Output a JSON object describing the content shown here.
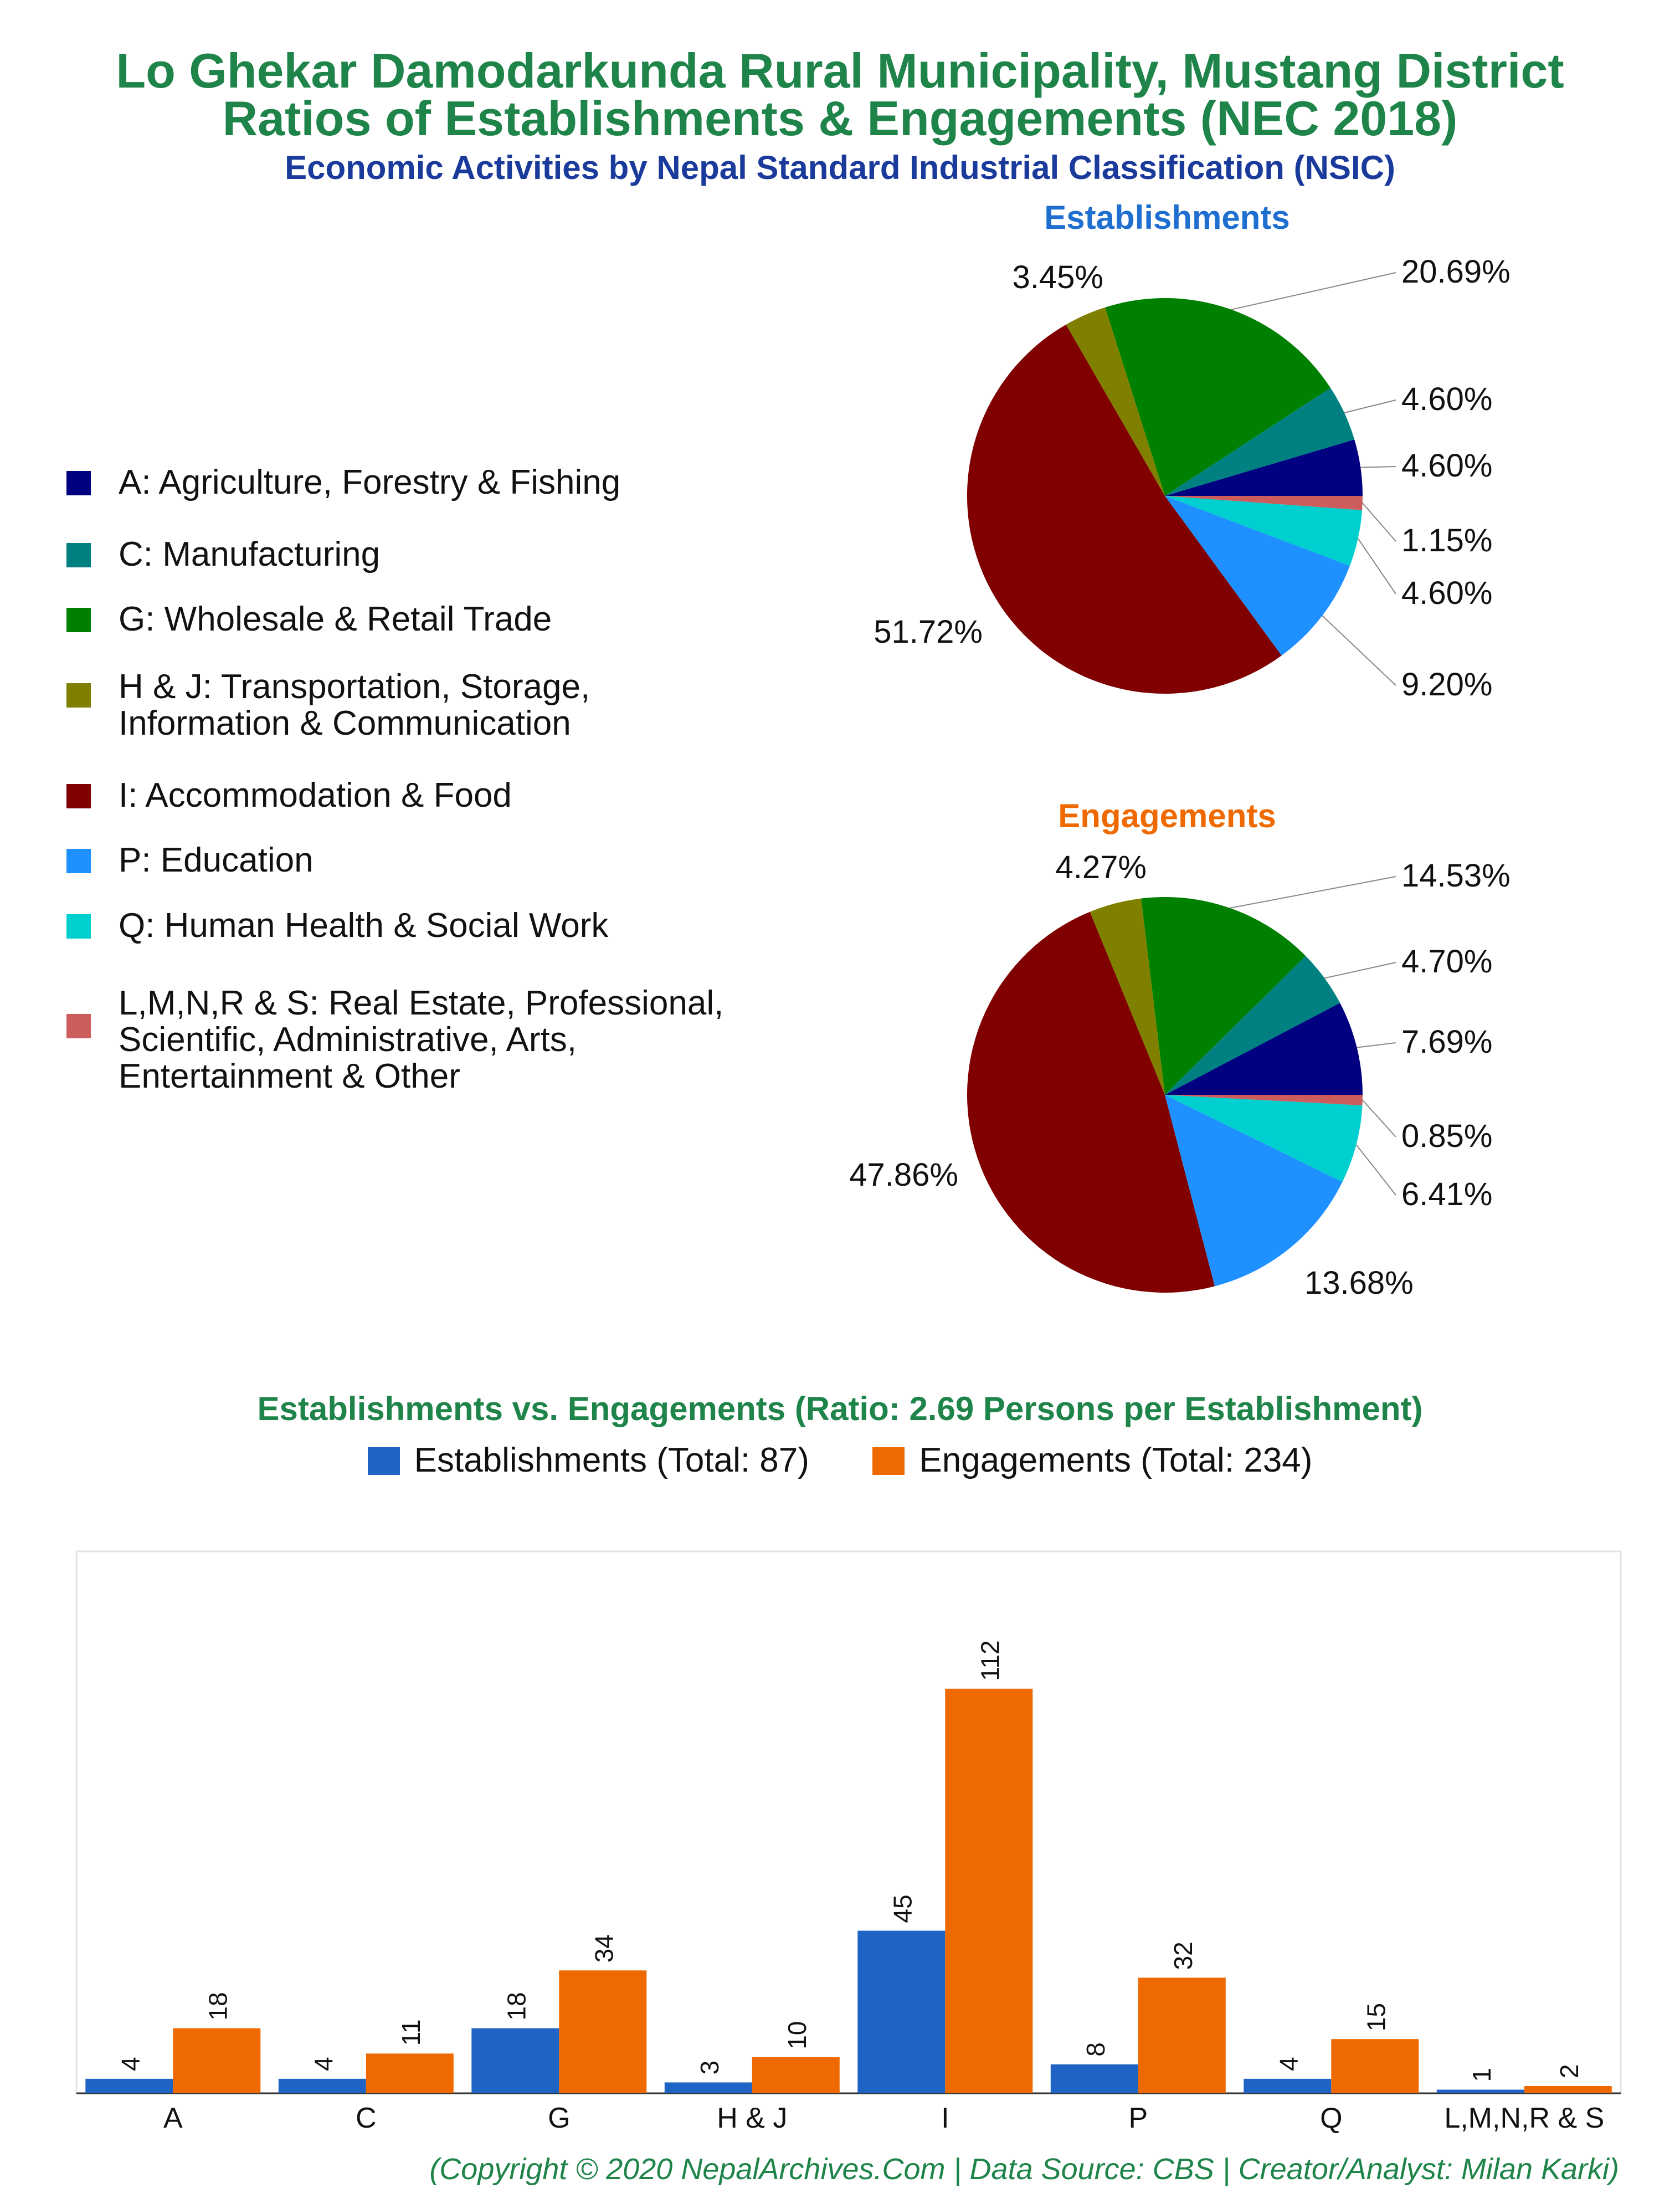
{
  "header": {
    "title_line1": "Lo Ghekar Damodarkunda Rural Municipality, Mustang District",
    "title_line2": "Ratios of Establishments & Engagements (NEC 2018)",
    "subtitle": "Economic Activities by Nepal Standard Industrial Classification (NSIC)"
  },
  "colors": {
    "title": "#1e8449",
    "subtitle": "#1a3a9c",
    "establishments_title": "#1f6fd1",
    "engagements_title": "#ee6a00",
    "bar_establishments": "#1f63c4",
    "bar_engagements": "#ee6a00"
  },
  "legend": {
    "items": [
      {
        "lines": [
          "A: Agriculture, Forestry & Fishing"
        ],
        "color": "#000080"
      },
      {
        "lines": [
          "C: Manufacturing"
        ],
        "color": "#008080"
      },
      {
        "lines": [
          "G: Wholesale & Retail Trade"
        ],
        "color": "#008000"
      },
      {
        "lines": [
          "H & J: Transportation, Storage,",
          "Information & Communication"
        ],
        "color": "#808000"
      },
      {
        "lines": [
          "I: Accommodation & Food"
        ],
        "color": "#800000"
      },
      {
        "lines": [
          "P: Education"
        ],
        "color": "#1e90ff"
      },
      {
        "lines": [
          "Q: Human Health & Social Work"
        ],
        "color": "#00cfcf"
      },
      {
        "lines": [
          "L,M,N,R & S: Real Estate, Professional,",
          "Scientific, Administrative, Arts,",
          "Entertainment & Other"
        ],
        "color": "#cd5c5c"
      }
    ]
  },
  "chart_data": [
    {
      "type": "pie",
      "title": "Establishments",
      "categories": [
        "A",
        "C",
        "G",
        "H & J",
        "I",
        "P",
        "Q",
        "L,M,N,R & S"
      ],
      "values": [
        4.6,
        4.6,
        20.69,
        3.45,
        51.72,
        9.2,
        4.6,
        1.15
      ],
      "labels": [
        "4.60%",
        "4.60%",
        "20.69%",
        "3.45%",
        "51.72%",
        "9.20%",
        "4.60%",
        "1.15%"
      ],
      "colors": [
        "#000080",
        "#008080",
        "#008000",
        "#808000",
        "#800000",
        "#1e90ff",
        "#00cfcf",
        "#cd5c5c"
      ]
    },
    {
      "type": "pie",
      "title": "Engagements",
      "categories": [
        "A",
        "C",
        "G",
        "H & J",
        "I",
        "P",
        "Q",
        "L,M,N,R & S"
      ],
      "values": [
        7.69,
        4.7,
        14.53,
        4.27,
        47.86,
        13.68,
        6.41,
        0.85
      ],
      "labels": [
        "7.69%",
        "4.70%",
        "14.53%",
        "4.27%",
        "47.86%",
        "13.68%",
        "6.41%",
        "0.85%"
      ],
      "colors": [
        "#000080",
        "#008080",
        "#008000",
        "#808000",
        "#800000",
        "#1e90ff",
        "#00cfcf",
        "#cd5c5c"
      ]
    },
    {
      "type": "bar",
      "title": "Establishments vs. Engagements (Ratio: 2.69 Persons per Establishment)",
      "categories": [
        "A",
        "C",
        "G",
        "H & J",
        "I",
        "P",
        "Q",
        "L,M,N,R & S"
      ],
      "series": [
        {
          "name": "Establishments (Total: 87)",
          "values": [
            4,
            4,
            18,
            3,
            45,
            8,
            4,
            1
          ]
        },
        {
          "name": "Engagements (Total: 234)",
          "values": [
            18,
            11,
            34,
            10,
            112,
            32,
            15,
            2
          ]
        }
      ],
      "ylim": [
        0,
        150
      ],
      "grid": false,
      "legend": "top"
    }
  ],
  "footer": "(Copyright © 2020 NepalArchives.Com | Data Source: CBS | Creator/Analyst: Milan Karki)"
}
